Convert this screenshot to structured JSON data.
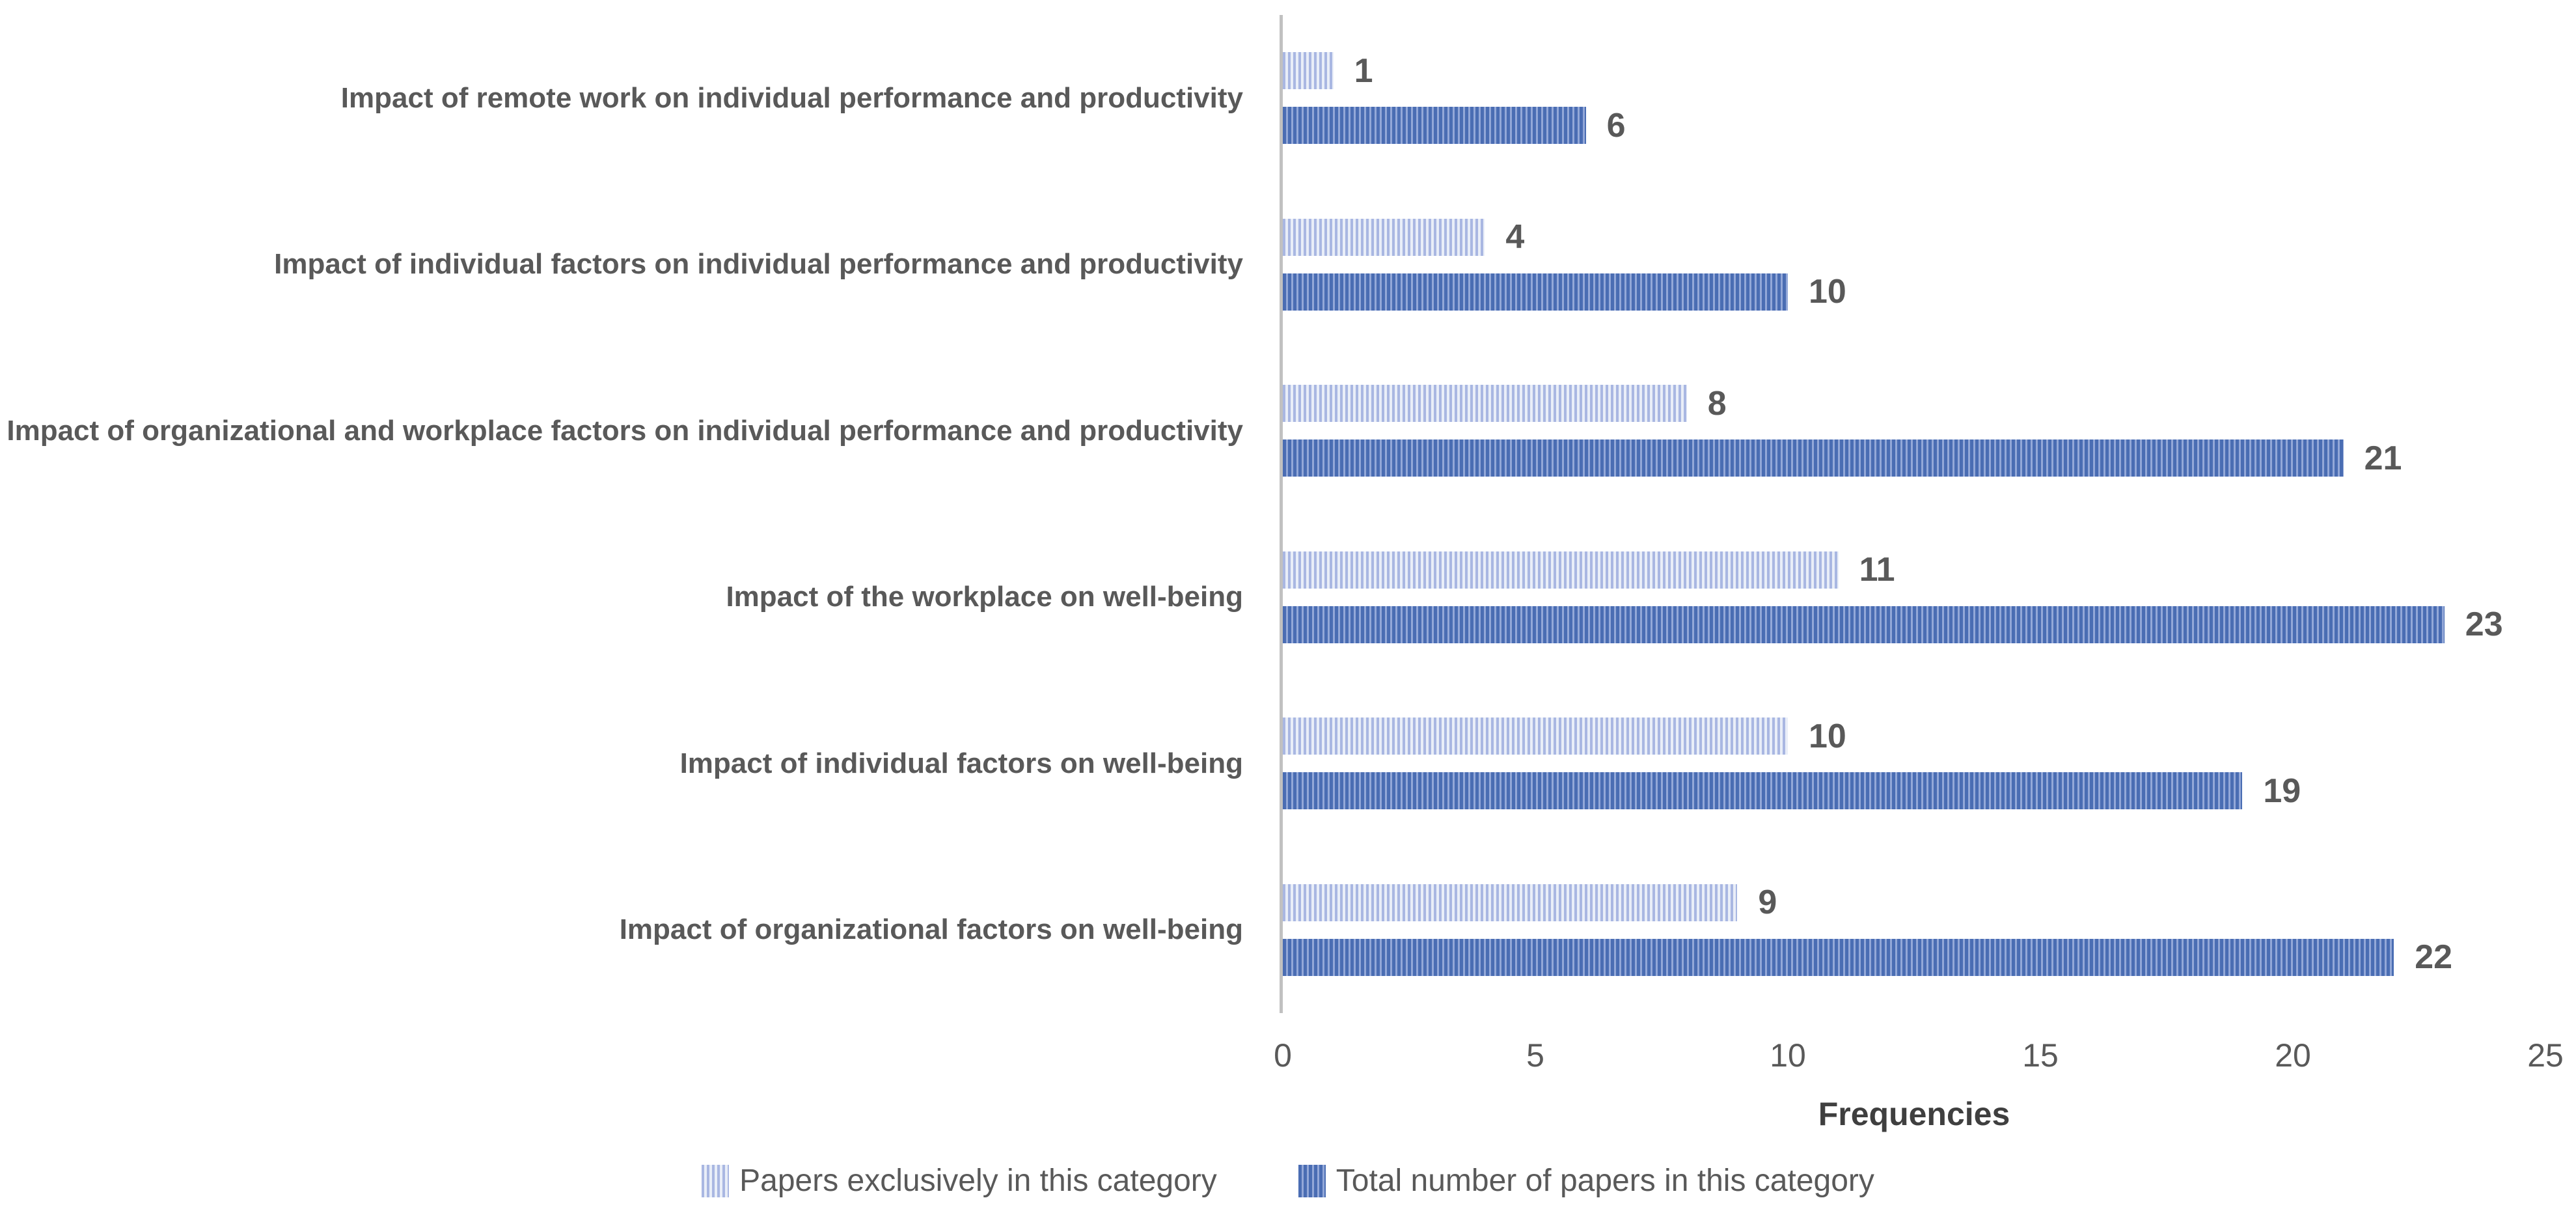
{
  "chart_data": {
    "type": "bar",
    "orientation": "horizontal",
    "categories": [
      "Impact of remote work on individual performance and productivity",
      "Impact of individual factors on individual performance and productivity",
      "Impact of organizational and workplace factors on individual performance and productivity",
      "Impact of the workplace on well-being",
      "Impact of individual factors on well-being",
      "Impact of organizational factors on well-being"
    ],
    "series": [
      {
        "name": "Papers exclusively in this category",
        "values": [
          1,
          4,
          8,
          11,
          10,
          9
        ]
      },
      {
        "name": "Total number of papers in this category",
        "values": [
          6,
          10,
          21,
          23,
          19,
          22
        ]
      }
    ],
    "data_labels": true,
    "xlabel": "Frequencies",
    "xlim": [
      0,
      25
    ],
    "xticks": [
      0,
      5,
      10,
      15,
      20,
      25
    ],
    "grid": false,
    "legend_position": "bottom"
  },
  "colors": {
    "exclusive_stripe": "#a9b7e2",
    "exclusive_gap": "#e9eef8",
    "total_stripe": "#4a6db3",
    "total_gap": "#93a8d8",
    "axis_line": "#c1c1c1",
    "text": "#595959"
  }
}
